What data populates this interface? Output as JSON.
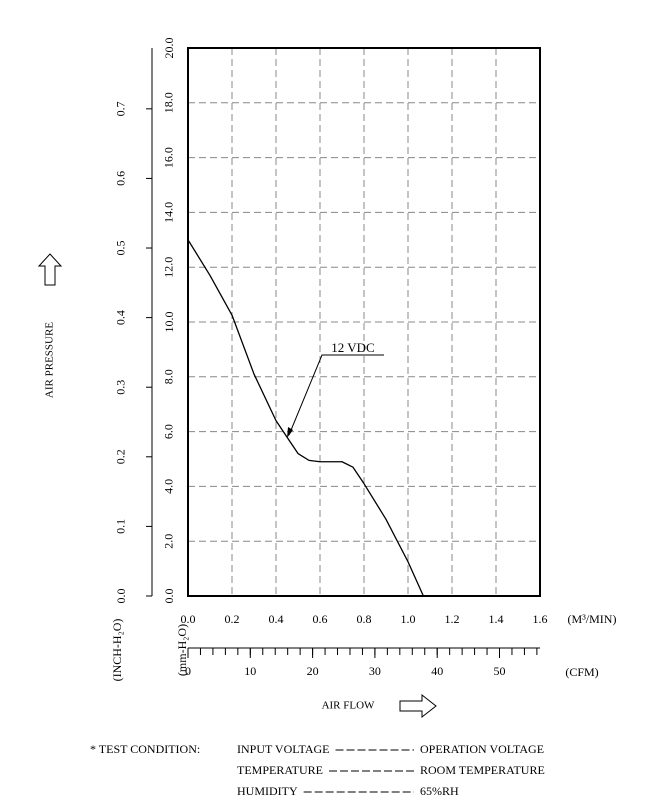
{
  "chart_data": {
    "type": "line",
    "y_axis_title": "AIR PRESSURE",
    "y_unit": "(mm-H₂O)",
    "y2_unit": "(INCH-H₂O)",
    "x_unit": "(M³/MIN)",
    "x2_unit": "(CFM)",
    "x_axis_title": "AIR FLOW",
    "x": [
      0,
      0.1,
      0.2,
      0.3,
      0.4,
      0.45,
      0.5,
      0.55,
      0.6,
      0.7,
      0.75,
      0.8,
      0.9,
      1.0,
      1.07
    ],
    "series": [
      {
        "name": "12 VDC",
        "color": "#000000",
        "values": [
          13.0,
          11.7,
          10.25,
          8.1,
          6.4,
          5.8,
          5.2,
          4.95,
          4.9,
          4.9,
          4.7,
          4.1,
          2.8,
          1.25,
          0
        ]
      }
    ],
    "xlim": [
      0,
      1.6
    ],
    "xticks": [
      {
        "value": 0,
        "label": "0.0"
      },
      0.2,
      0.4,
      0.6,
      0.8,
      {
        "value": 1,
        "label": "1.0"
      },
      1.2,
      1.4,
      1.6
    ],
    "ylim": [
      0,
      20
    ],
    "yticks": [
      {
        "value": 0,
        "label": "0.0"
      },
      {
        "value": 2,
        "label": "2.0"
      },
      {
        "value": 4,
        "label": "4.0"
      },
      {
        "value": 6,
        "label": "6.0"
      },
      {
        "value": 8,
        "label": "8.0"
      },
      {
        "value": 10,
        "label": "10.0"
      },
      {
        "value": 12,
        "label": "12.0"
      },
      {
        "value": 14,
        "label": "14.0"
      },
      {
        "value": 16,
        "label": "16.0"
      },
      {
        "value": 18,
        "label": "18.0"
      },
      {
        "value": 20,
        "label": "20.0"
      }
    ],
    "y2lim": [
      0,
      0.7874
    ],
    "y2ticks": [
      {
        "value": 0,
        "label": "0.0"
      },
      0.1,
      0.2,
      0.3,
      0.4,
      0.5,
      0.6,
      0.7
    ],
    "x2lim": [
      0,
      56.5
    ],
    "x2ticks": [
      0,
      10,
      20,
      30,
      40,
      50
    ],
    "x2minor_ticks": [
      0,
      2,
      4,
      6,
      8,
      10,
      12,
      14,
      16,
      18,
      20,
      22,
      24,
      26,
      28,
      30,
      32,
      34,
      36,
      38,
      40,
      42,
      44,
      46,
      48,
      50,
      52,
      54,
      56
    ],
    "grid": true
  },
  "test_conditions": {
    "label": "* TEST CONDITION:",
    "rows": [
      {
        "name": "INPUT VOLTAGE",
        "value": "OPERATION VOLTAGE"
      },
      {
        "name": "TEMPERATURE",
        "value": "ROOM TEMPERATURE"
      },
      {
        "name": "HUMIDITY",
        "value": "65%RH"
      }
    ]
  }
}
